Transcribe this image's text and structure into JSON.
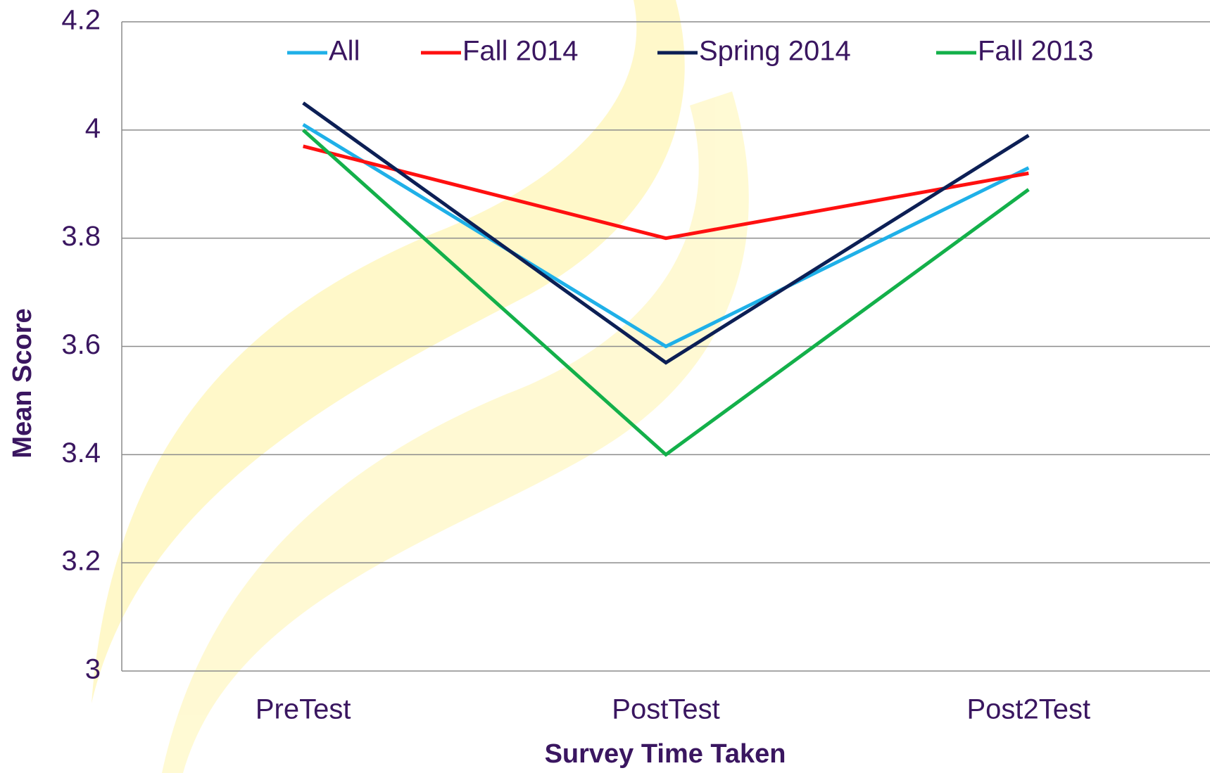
{
  "chart_data": {
    "type": "line",
    "x_label": "Survey Time Taken",
    "y_label": "Mean Score",
    "categories": [
      "PreTest",
      "PostTest",
      "Post2Test"
    ],
    "series": [
      {
        "name": "All",
        "color": "#1fb0e8",
        "values": [
          4.01,
          3.6,
          3.93
        ]
      },
      {
        "name": "Fall 2014",
        "color": "#ff1010",
        "values": [
          3.97,
          3.8,
          3.92
        ]
      },
      {
        "name": "Spring 2014",
        "color": "#0c1f55",
        "values": [
          4.05,
          3.57,
          3.99
        ]
      },
      {
        "name": "Fall 2013",
        "color": "#13b04a",
        "values": [
          4.0,
          3.4,
          3.89
        ]
      }
    ],
    "ylim": [
      3,
      4.2
    ],
    "yticks": [
      3,
      3.2,
      3.4,
      3.6,
      3.8,
      4,
      4.2
    ],
    "grid": true,
    "legend": "top"
  }
}
